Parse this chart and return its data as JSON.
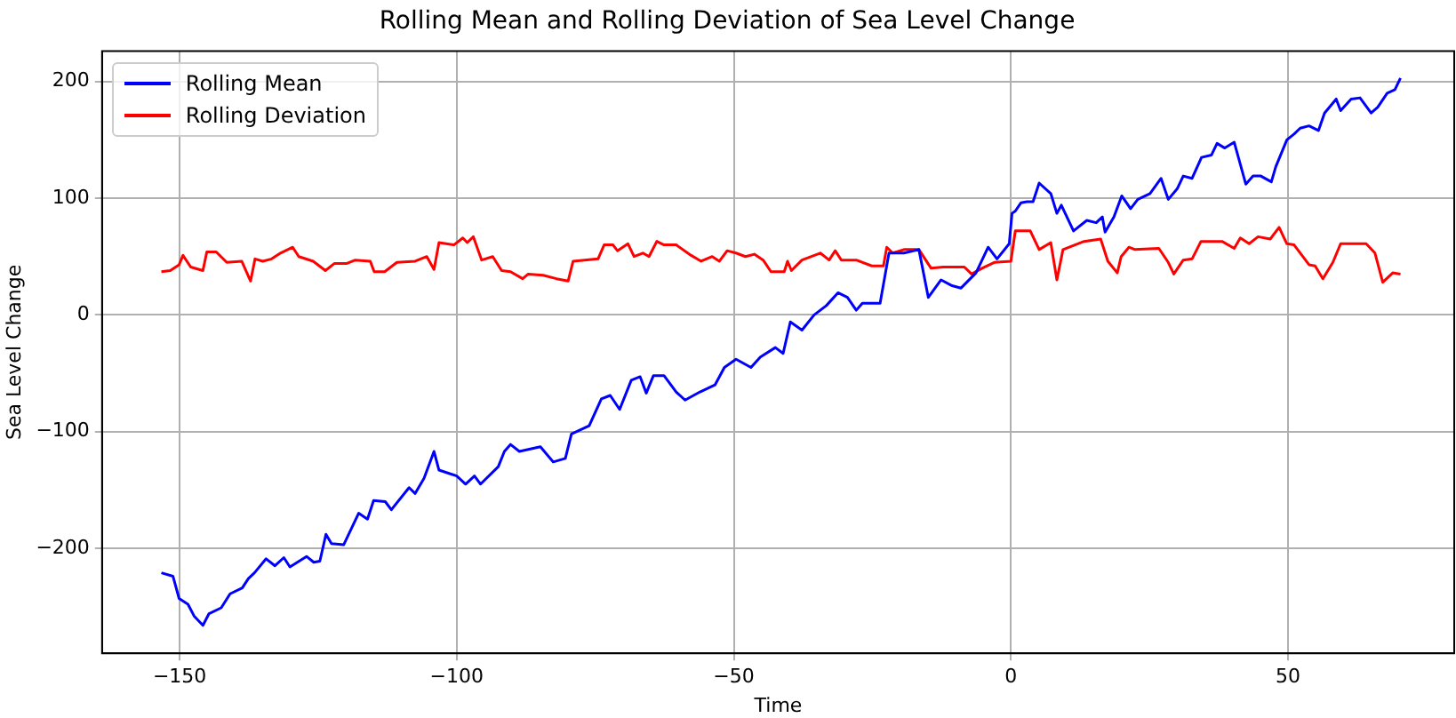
{
  "chart_data": {
    "type": "line",
    "title": "Rolling Mean and Rolling Deviation of Sea Level Change",
    "xlabel": "Time",
    "ylabel": "Sea Level Change",
    "xlim": [
      -164,
      80
    ],
    "xticks": [
      {
        "value": -150,
        "label": "−150"
      },
      {
        "value": -100,
        "label": "−100"
      },
      {
        "value": -50,
        "label": "−50"
      },
      0,
      50
    ],
    "ylim": [
      -290,
      226
    ],
    "yticks": [
      {
        "value": -200,
        "label": "−200"
      },
      {
        "value": -100,
        "label": "−100"
      },
      0,
      100,
      200
    ],
    "grid": true,
    "legend": "top left",
    "marker": "none",
    "line_style": "solid",
    "series": [
      {
        "name": "Rolling Mean",
        "color": "#0000ff",
        "x": [
          -153.3,
          -151.2,
          -150.1,
          -148.5,
          -147.4,
          -145.8,
          -144.7,
          -142.5,
          -140.9,
          -138.7,
          -137.6,
          -136.5,
          -134.4,
          -132.8,
          -131.2,
          -130.1,
          -127.1,
          -125.8,
          -124.7,
          -123.6,
          -122.6,
          -120.4,
          -117.7,
          -116.1,
          -115,
          -112.9,
          -111.8,
          -108.6,
          -107.5,
          -105.9,
          -104.1,
          -103.2,
          -100,
          -98.4,
          -96.8,
          -95.7,
          -92.5,
          -91.4,
          -90.3,
          -88.7,
          -84.9,
          -82.6,
          -80.4,
          -79.3,
          -76.1,
          -73.9,
          -72.3,
          -70.6,
          -68.5,
          -66.9,
          -65.8,
          -64.5,
          -62.6,
          -60.4,
          -58.8,
          -56.1,
          -53.4,
          -51.7,
          -49.6,
          -46.9,
          -45.2,
          -42.5,
          -41.1,
          -39.8,
          -37.7,
          -35.5,
          -33.3,
          -31.2,
          -29.5,
          -27.9,
          -26.8,
          -23.6,
          -22,
          -19.3,
          -16.6,
          -14.9,
          -12.6,
          -10.6,
          -9,
          -6.3,
          -4.1,
          -2.5,
          -0.3,
          0.2,
          0.8,
          1.8,
          2.9,
          4,
          5.1,
          7.2,
          8.3,
          9.1,
          11.3,
          13.7,
          15.4,
          16.5,
          17,
          18.6,
          20,
          21.6,
          22.9,
          25.1,
          27.1,
          28.4,
          30,
          31.1,
          32.7,
          34.4,
          36.2,
          37.2,
          38.6,
          40.3,
          42.4,
          43.7,
          45.1,
          47,
          47.8,
          49.8,
          51.1,
          52.2,
          53.8,
          55.5,
          56.6,
          58.7,
          59.5,
          61.4,
          63,
          65,
          66.2,
          67.9,
          69.3,
          70.3
        ],
        "values": [
          -221,
          -224,
          -243,
          -248,
          -258,
          -266,
          -256,
          -251,
          -239,
          -234,
          -226,
          -221,
          -209,
          -215,
          -208,
          -216,
          -207,
          -212,
          -211,
          -188,
          -196,
          -197,
          -170,
          -175,
          -159,
          -160,
          -167,
          -148,
          -153,
          -140,
          -117,
          -133,
          -138,
          -145,
          -138,
          -145,
          -130,
          -117,
          -111,
          -117,
          -113,
          -126,
          -123,
          -102,
          -95,
          -72,
          -69,
          -81,
          -56,
          -53,
          -67,
          -52,
          -52,
          -66,
          -73,
          -66,
          -60,
          -45,
          -38,
          -45,
          -36,
          -28,
          -33,
          -6,
          -13,
          0,
          8,
          19,
          15,
          4,
          10,
          10,
          53,
          53,
          56,
          15,
          30,
          25,
          23,
          36,
          58,
          48,
          61,
          87,
          89,
          96,
          97,
          97,
          113,
          104,
          87,
          94,
          72,
          81,
          79,
          84,
          71,
          84,
          102,
          91,
          99,
          104,
          117,
          99,
          108,
          119,
          117,
          135,
          137,
          147,
          143,
          148,
          112,
          119,
          119,
          114,
          127,
          150,
          155,
          160,
          162,
          158,
          173,
          185,
          175,
          185,
          186,
          173,
          178,
          190,
          193,
          203
        ]
      },
      {
        "name": "Rolling Deviation",
        "color": "#ff0000",
        "x": [
          -153.3,
          -151.7,
          -150.1,
          -149.4,
          -148,
          -145.8,
          -145.1,
          -143.4,
          -141.5,
          -138.8,
          -137.2,
          -136.4,
          -135,
          -133.4,
          -131.8,
          -129.6,
          -128.5,
          -125.9,
          -123.7,
          -122.1,
          -119.9,
          -118.3,
          -115.6,
          -114.9,
          -113,
          -110.8,
          -107.5,
          -105.4,
          -104.1,
          -103.2,
          -100.5,
          -98.9,
          -98.1,
          -97,
          -95.5,
          -93.5,
          -91.9,
          -90.3,
          -88.1,
          -87.1,
          -84.4,
          -82,
          -79.9,
          -79,
          -74.5,
          -73.4,
          -71.8,
          -71,
          -69.1,
          -68,
          -66.4,
          -65.3,
          -63.9,
          -62.6,
          -60.4,
          -57.7,
          -55.9,
          -53.9,
          -52.6,
          -51.2,
          -49.6,
          -47.9,
          -46.3,
          -44.7,
          -43.3,
          -40.9,
          -40.3,
          -39.6,
          -37.7,
          -34.4,
          -32.8,
          -31.7,
          -30.6,
          -27.9,
          -25.1,
          -23,
          -22.4,
          -21.3,
          -19.3,
          -16.6,
          -14.4,
          -12.2,
          -8.4,
          -7.1,
          -5.2,
          -3,
          0,
          0.8,
          3.5,
          5.1,
          7.2,
          8.3,
          9.4,
          13.2,
          16.2,
          17.5,
          19.2,
          19.9,
          21.3,
          22.4,
          26.7,
          28.4,
          29.4,
          31.1,
          32.7,
          34.3,
          38.1,
          40.3,
          41.4,
          43,
          44.6,
          46.8,
          48.4,
          49.8,
          51.1,
          53.8,
          54.9,
          56.3,
          58.1,
          59.5,
          64.1,
          65.7,
          67.1,
          68.9,
          70.3
        ],
        "values": [
          37,
          38,
          43,
          51,
          41,
          38,
          54,
          54,
          45,
          46,
          29,
          48,
          46,
          48,
          53,
          58,
          50,
          46,
          38,
          44,
          44,
          47,
          46,
          37,
          37,
          45,
          46,
          50,
          39,
          62,
          60,
          66,
          62,
          67,
          47,
          50,
          38,
          37,
          31,
          35,
          34,
          31,
          29,
          46,
          48,
          60,
          60,
          55,
          61,
          50,
          53,
          50,
          63,
          60,
          60,
          51,
          46,
          50,
          46,
          55,
          53,
          50,
          52,
          47,
          37,
          37,
          46,
          38,
          47,
          53,
          47,
          55,
          47,
          47,
          42,
          42,
          58,
          53,
          56,
          56,
          40,
          41,
          41,
          35,
          40,
          45,
          46,
          72,
          72,
          56,
          62,
          30,
          56,
          63,
          65,
          46,
          36,
          50,
          58,
          56,
          57,
          45,
          35,
          47,
          48,
          63,
          63,
          57,
          66,
          61,
          67,
          65,
          75,
          61,
          60,
          43,
          42,
          31,
          45,
          61,
          61,
          53,
          28,
          36,
          35
        ]
      }
    ]
  }
}
